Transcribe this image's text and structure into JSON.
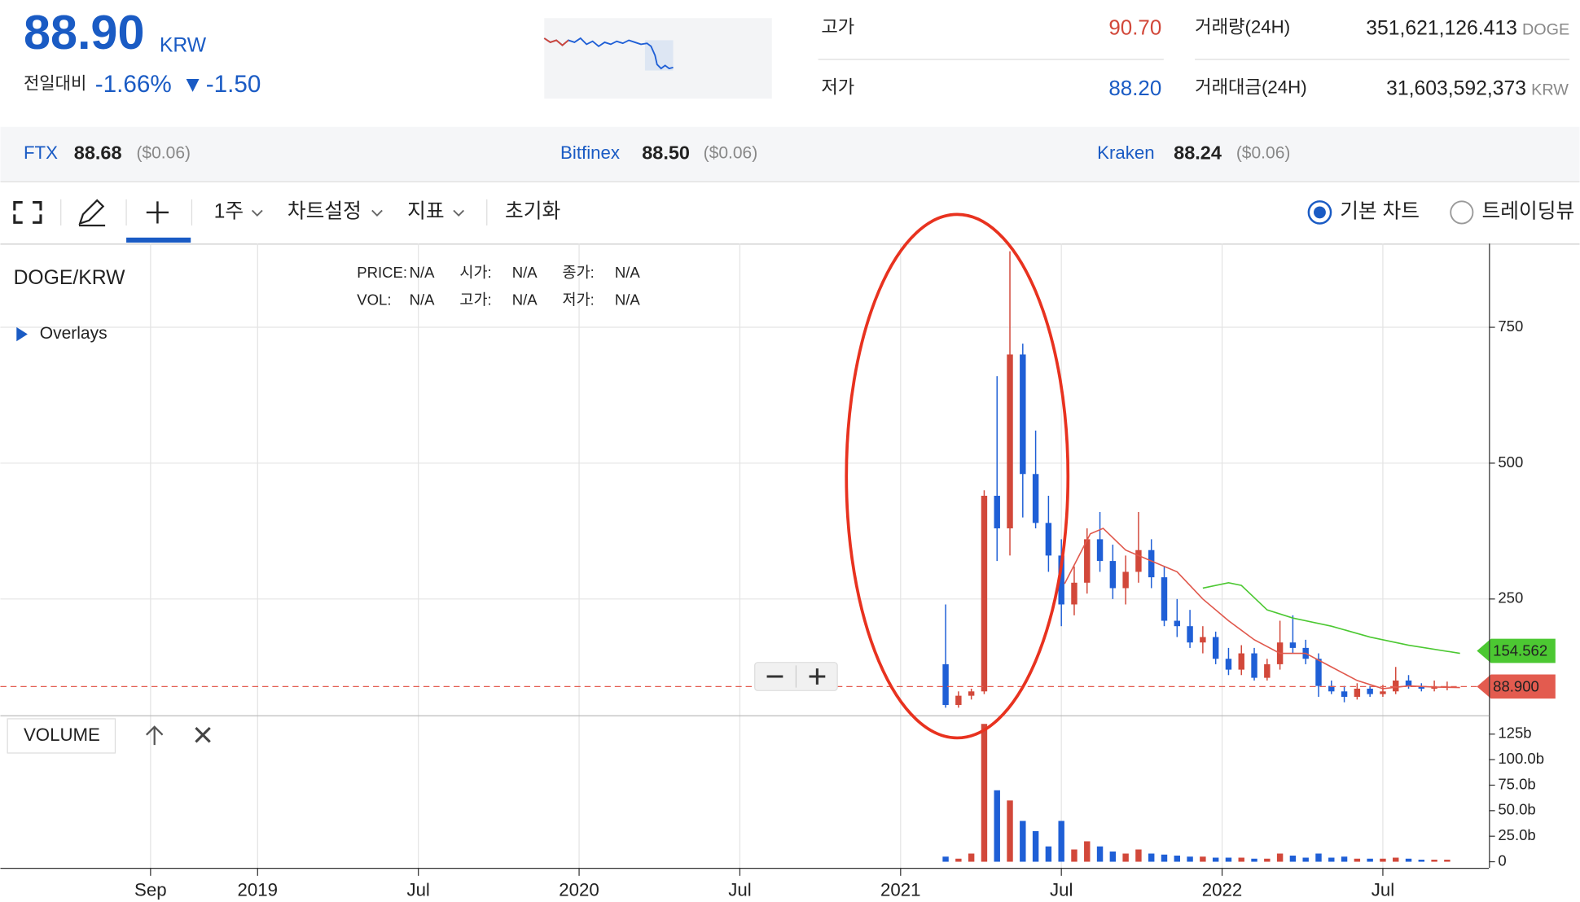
{
  "header": {
    "price": "88.90",
    "currency": "KRW",
    "change_label": "전일대비",
    "change_pct": "-1.66%",
    "change_arrow": "▼",
    "change_abs": "-1.50"
  },
  "stats": {
    "high_label": "고가",
    "high": "90.70",
    "low_label": "저가",
    "low": "88.20",
    "volume_label": "거래량(24H)",
    "volume": "351,621,126.413",
    "volume_unit": "DOGE",
    "amount_label": "거래대금(24H)",
    "amount": "31,603,592,373",
    "amount_unit": "KRW"
  },
  "exchanges": [
    {
      "name": "FTX",
      "price": "88.68",
      "diff": "($0.06)"
    },
    {
      "name": "Bitfinex",
      "price": "88.50",
      "diff": "($0.06)"
    },
    {
      "name": "Kraken",
      "price": "88.24",
      "diff": "($0.06)"
    }
  ],
  "toolbar": {
    "period": "1주",
    "settings": "차트설정",
    "indicators": "지표",
    "reset": "초기화",
    "radio_basic": "기본 차트",
    "radio_tradingview": "트레이딩뷰"
  },
  "chart_data": {
    "type": "candlestick",
    "title": "DOGE/KRW",
    "overlays": "Overlays",
    "info": [
      [
        "PRICE:",
        "N/A",
        "시가:",
        "N/A",
        "종가:",
        "N/A"
      ],
      [
        "VOL:",
        "N/A",
        "고가:",
        "N/A",
        "저가:",
        "N/A"
      ]
    ],
    "up_color": "#d2483a",
    "down_color": "#1f5fd6",
    "x": [
      2021.14,
      2021.18,
      2021.22,
      2021.26,
      2021.3,
      2021.34,
      2021.38,
      2021.42,
      2021.46,
      2021.5,
      2021.54,
      2021.58,
      2021.62,
      2021.66,
      2021.7,
      2021.74,
      2021.78,
      2021.82,
      2021.86,
      2021.9,
      2021.94,
      2021.98,
      2022.02,
      2022.06,
      2022.1,
      2022.14,
      2022.18,
      2022.22,
      2022.26,
      2022.3,
      2022.34,
      2022.38,
      2022.42,
      2022.46,
      2022.5,
      2022.54,
      2022.58,
      2022.62,
      2022.66,
      2022.7
    ],
    "open": [
      130,
      55,
      72,
      80,
      440,
      380,
      700,
      480,
      390,
      330,
      240,
      280,
      360,
      320,
      270,
      300,
      340,
      290,
      210,
      200,
      170,
      180,
      140,
      120,
      150,
      105,
      130,
      170,
      160,
      140,
      90,
      80,
      70,
      85,
      75,
      80,
      100,
      90,
      85,
      88
    ],
    "high": [
      240,
      80,
      85,
      450,
      660,
      890,
      720,
      560,
      440,
      360,
      310,
      380,
      410,
      350,
      330,
      410,
      360,
      310,
      250,
      230,
      200,
      190,
      160,
      165,
      160,
      140,
      210,
      220,
      175,
      150,
      100,
      90,
      95,
      90,
      92,
      125,
      110,
      95,
      100,
      98
    ],
    "low": [
      50,
      50,
      65,
      75,
      320,
      330,
      400,
      380,
      300,
      200,
      220,
      260,
      300,
      250,
      240,
      280,
      270,
      200,
      180,
      160,
      150,
      130,
      110,
      110,
      100,
      100,
      120,
      150,
      130,
      70,
      75,
      60,
      65,
      70,
      70,
      75,
      85,
      80,
      80,
      82
    ],
    "close": [
      55,
      72,
      80,
      440,
      380,
      700,
      480,
      390,
      330,
      240,
      280,
      360,
      320,
      270,
      300,
      340,
      290,
      210,
      200,
      170,
      180,
      140,
      120,
      150,
      105,
      130,
      170,
      160,
      140,
      90,
      80,
      70,
      85,
      75,
      80,
      100,
      90,
      85,
      88,
      89
    ],
    "volume": [
      5,
      3,
      8,
      135,
      70,
      60,
      40,
      30,
      15,
      40,
      12,
      20,
      15,
      10,
      8,
      12,
      8,
      7,
      6,
      5,
      5,
      4,
      4,
      4,
      3,
      3,
      8,
      6,
      4,
      8,
      4,
      5,
      3,
      3,
      3,
      4,
      3,
      2,
      2,
      2
    ],
    "moving_averages": [
      {
        "color": "#e0584c",
        "x": [
          2021.51,
          2021.59,
          2021.63,
          2021.7,
          2021.78,
          2021.86,
          2021.94,
          2022.02,
          2022.1,
          2022.18,
          2022.26,
          2022.34,
          2022.42,
          2022.5,
          2022.58,
          2022.66,
          2022.74
        ],
        "values": [
          278,
          370,
          380,
          340,
          320,
          300,
          250,
          210,
          175,
          150,
          150,
          125,
          100,
          85,
          90,
          88,
          87
        ]
      },
      {
        "color": "#4cc832",
        "x": [
          2021.94,
          2022.02,
          2022.06,
          2022.14,
          2022.22,
          2022.34,
          2022.46,
          2022.58,
          2022.74
        ],
        "values": [
          270,
          280,
          275,
          230,
          215,
          200,
          180,
          165,
          150
        ]
      }
    ],
    "price_markers": [
      {
        "value": 154.562,
        "color": "#4cc832"
      },
      {
        "value": {
          "value": 88.9,
          "label": "88.900"
        },
        "color": "#e35b4f"
      }
    ],
    "xlim": [
      2018.2,
      2022.83
    ],
    "xticks": [
      {
        "value": 2018.667,
        "label": "Sep"
      },
      2019,
      {
        "value": 2019.5,
        "label": "Jul"
      },
      2020,
      {
        "value": 2020.5,
        "label": "Jul"
      },
      2021,
      {
        "value": 2021.5,
        "label": "Jul"
      },
      2022,
      {
        "value": 2022.5,
        "label": "Jul"
      }
    ],
    "ylim": [
      37,
      904
    ],
    "yticks": [
      250,
      500,
      750
    ],
    "volume_title": "VOLUME",
    "volume_ylim": [
      0,
      142
    ],
    "volume_ticks": [
      0,
      {
        "value": 25,
        "label": "25.0b"
      },
      {
        "value": 50,
        "label": "50.0b"
      },
      {
        "value": 75,
        "label": "75.0b"
      },
      {
        "value": 100,
        "label": "100.0b"
      },
      {
        "value": 125,
        "label": "125b"
      }
    ],
    "grid": true
  }
}
